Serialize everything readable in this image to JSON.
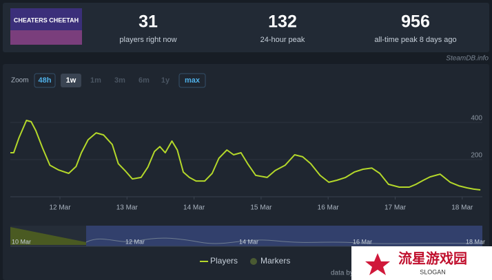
{
  "header": {
    "game_logo": "CHEATERS CHEETAH",
    "stats": [
      {
        "value": 31,
        "label": "players right now"
      },
      {
        "value": 132,
        "label": "24-hour peak"
      },
      {
        "value": 956,
        "label": "all-time peak 8 days ago"
      }
    ],
    "source": "SteamDB.info"
  },
  "zoom": {
    "label": "Zoom",
    "buttons": [
      "48h",
      "1w",
      "1m",
      "3m",
      "6m",
      "1y",
      "max"
    ]
  },
  "chart_data": {
    "type": "line",
    "x": [
      11.26,
      11.31,
      11.39,
      11.5,
      11.57,
      11.64,
      11.74,
      11.85,
      11.98,
      12.13,
      12.24,
      12.32,
      12.42,
      12.54,
      12.65,
      12.78,
      12.87,
      12.97,
      13.08,
      13.21,
      13.31,
      13.41,
      13.49,
      13.57,
      13.67,
      13.75,
      13.84,
      13.93,
      14.03,
      14.16,
      14.27,
      14.37,
      14.49,
      14.59,
      14.7,
      14.8,
      14.92,
      15.09,
      15.21,
      15.36,
      15.5,
      15.62,
      15.74,
      15.88,
      16.01,
      16.13,
      16.26,
      16.39,
      16.52,
      16.65,
      16.77,
      16.9,
      17.06,
      17.21,
      17.31,
      17.42,
      17.52,
      17.67,
      17.82,
      17.95,
      18.07,
      18.17,
      18.27
    ],
    "series": [
      {
        "name": "Players",
        "color": "#b4d82a",
        "values": [
          237,
          237,
          318,
          411,
          404,
          356,
          263,
          170,
          144,
          126,
          163,
          237,
          307,
          344,
          333,
          281,
          178,
          141,
          96,
          104,
          159,
          244,
          270,
          237,
          300,
          252,
          133,
          104,
          85,
          85,
          126,
          207,
          252,
          226,
          237,
          178,
          115,
          104,
          141,
          170,
          226,
          215,
          178,
          115,
          78,
          89,
          104,
          133,
          148,
          155,
          126,
          67,
          52,
          52,
          67,
          89,
          107,
          122,
          78,
          59,
          48,
          41,
          37
        ]
      },
      {
        "name": "Markers",
        "color": "#4a5a32"
      }
    ],
    "xlim": [
      11.26,
      18.3
    ],
    "ylim": [
      0,
      550
    ],
    "xticks": [
      {
        "value": 12,
        "label": "12 Mar"
      },
      {
        "value": 13,
        "label": "13 Mar"
      },
      {
        "value": 14,
        "label": "14 Mar"
      },
      {
        "value": 15,
        "label": "15 Mar"
      },
      {
        "value": 16,
        "label": "16 Mar"
      },
      {
        "value": 17,
        "label": "17 Mar"
      },
      {
        "value": 18,
        "label": "18 Mar"
      }
    ],
    "yticks": [
      200,
      400
    ],
    "grid": true
  },
  "navigator": {
    "labels": [
      "10 Mar",
      "12 Mar",
      "14 Mar",
      "16 Mar",
      "18 Mar"
    ]
  },
  "footer": {
    "credit": "data by",
    "watermark": "流星游戏园",
    "slogan": "SLOGAN"
  }
}
